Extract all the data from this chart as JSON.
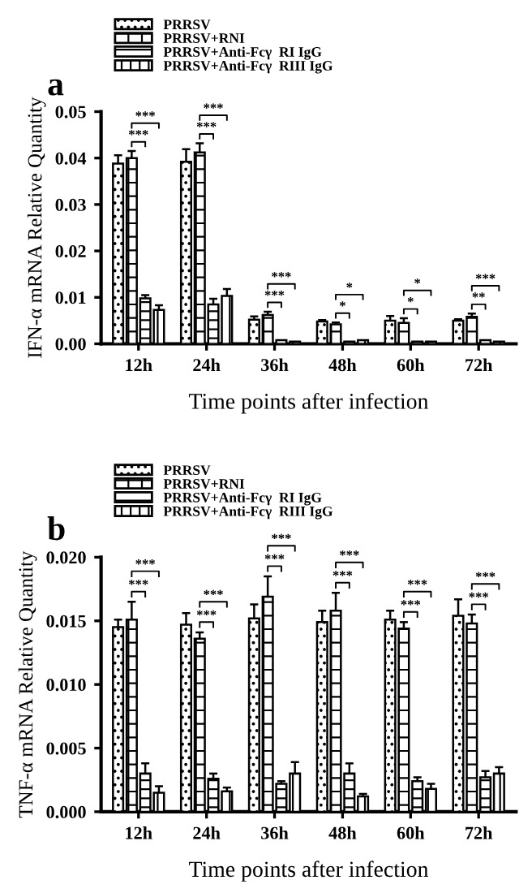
{
  "chart_data": [
    {
      "type": "bar",
      "title": "a",
      "xlabel": "Time points after infection",
      "ylabel": "IFN-α mRNA Relative Quantity",
      "categories": [
        "12h",
        "24h",
        "36h",
        "48h",
        "60h",
        "72h"
      ],
      "legend": "top left",
      "grid": false,
      "ylim": [
        0,
        0.05
      ],
      "yticks": [
        {
          "value": 0,
          "label": "0.00"
        },
        {
          "value": 0.01,
          "label": "0.01"
        },
        {
          "value": 0.02,
          "label": "0.02"
        },
        {
          "value": 0.03,
          "label": "0.03"
        },
        {
          "value": 0.04,
          "label": "0.04"
        },
        {
          "value": 0.05,
          "label": "0.05"
        }
      ],
      "series": [
        {
          "name": "PRRSV",
          "color": "#000000",
          "values": [
            0.0388,
            0.0392,
            0.0052,
            0.0048,
            0.005,
            0.005
          ],
          "errors": [
            0.0018,
            0.0027,
            0.0007,
            0.0003,
            0.001,
            0.0003
          ]
        },
        {
          "name": "PRRSV+RNI",
          "color": "#000000",
          "values": [
            0.04,
            0.0412,
            0.0062,
            0.0042,
            0.0045,
            0.0058
          ],
          "errors": [
            0.0015,
            0.002,
            0.0007,
            0.0004,
            0.001,
            0.0007
          ]
        },
        {
          "name": "PRRSV+Anti-Fcγ  RI IgG",
          "color": "#000000",
          "values": [
            0.0098,
            0.0085,
            0.0008,
            0.0005,
            0.0005,
            0.0008
          ],
          "errors": [
            0.0007,
            0.0012,
            null,
            null,
            null,
            null
          ]
        },
        {
          "name": "PRRSV+Anti-Fcγ  RIII IgG",
          "color": "#000000",
          "values": [
            0.0073,
            0.0103,
            0.0005,
            0.0008,
            0.0005,
            0.0005
          ],
          "errors": [
            0.001,
            0.0015,
            null,
            null,
            null,
            null
          ]
        }
      ],
      "annotations": [
        "***",
        "***",
        "***",
        "***",
        "***",
        "***",
        "*",
        "*",
        "*",
        "*",
        "**",
        "***"
      ]
    },
    {
      "type": "bar",
      "title": "b",
      "xlabel": "Time points after infection",
      "ylabel": "TNF-α mRNA Relative Quantity",
      "categories": [
        "12h",
        "24h",
        "36h",
        "48h",
        "60h",
        "72h"
      ],
      "legend": "top left",
      "grid": false,
      "ylim": [
        0,
        0.02
      ],
      "yticks": [
        {
          "value": 0,
          "label": "0.000"
        },
        {
          "value": 0.005,
          "label": "0.005"
        },
        {
          "value": 0.01,
          "label": "0.010"
        },
        {
          "value": 0.015,
          "label": "0.015"
        },
        {
          "value": 0.02,
          "label": "0.020"
        }
      ],
      "series": [
        {
          "name": "PRRSV",
          "color": "#000000",
          "values": [
            0.0145,
            0.0147,
            0.0152,
            0.0149,
            0.0151,
            0.0154
          ],
          "errors": [
            0.0006,
            0.0009,
            0.0011,
            0.0009,
            0.0007,
            0.0013
          ]
        },
        {
          "name": "PRRSV+RNI",
          "color": "#000000",
          "values": [
            0.0151,
            0.0136,
            0.0169,
            0.0158,
            0.0144,
            0.0148
          ],
          "errors": [
            0.0014,
            0.0005,
            0.0016,
            0.0014,
            0.0005,
            0.0007
          ]
        },
        {
          "name": "PRRSV+Anti-Fcγ  RI IgG",
          "color": "#000000",
          "values": [
            0.003,
            0.0026,
            0.0022,
            0.003,
            0.0024,
            0.0027
          ],
          "errors": [
            0.0008,
            0.0004,
            0.0002,
            0.0008,
            0.0003,
            0.0005
          ]
        },
        {
          "name": "PRRSV+Anti-Fcγ  RIII IgG",
          "color": "#000000",
          "values": [
            0.0015,
            0.0016,
            0.003,
            0.0012,
            0.0018,
            0.003
          ],
          "errors": [
            0.0005,
            0.0003,
            0.0009,
            0.0002,
            0.0004,
            0.0005
          ]
        }
      ],
      "annotations": [
        "***",
        "***",
        "***",
        "***",
        "***",
        "***",
        "***",
        "***",
        "***",
        "***",
        "***",
        "***"
      ]
    }
  ]
}
